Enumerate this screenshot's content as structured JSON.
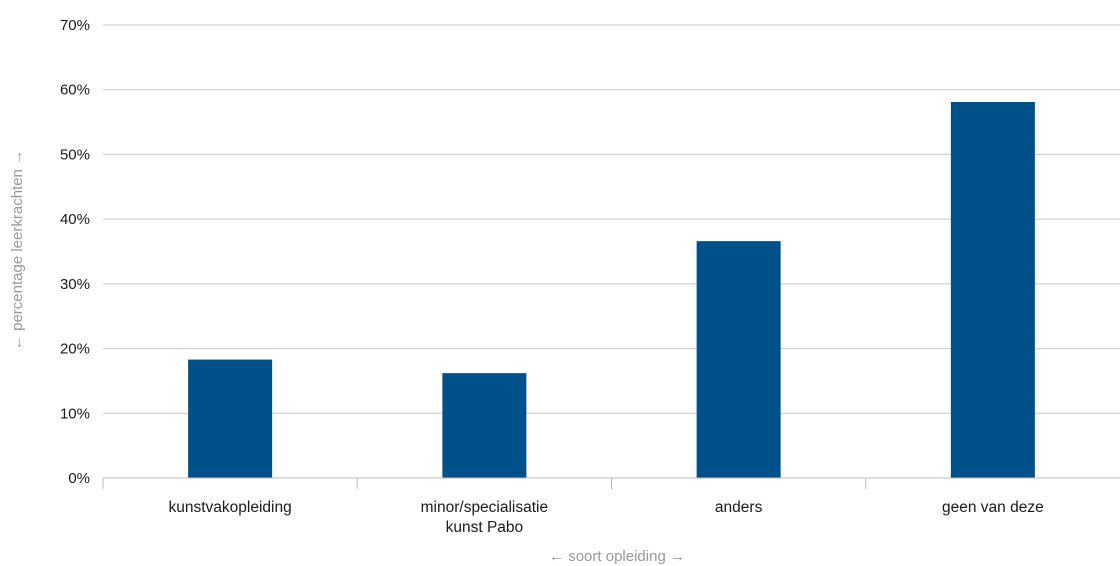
{
  "chart_data": {
    "type": "bar",
    "categories": [
      [
        "kunstvakopleiding"
      ],
      [
        "minor/specialisatie",
        "kunst Pabo"
      ],
      [
        "anders"
      ],
      [
        "geen van deze"
      ]
    ],
    "values": [
      18.3,
      16.2,
      36.6,
      58.1
    ],
    "ylim": [
      0,
      70
    ],
    "yticks": [
      0,
      10,
      20,
      30,
      40,
      50,
      60,
      70
    ],
    "ytick_labels": [
      "0%",
      "10%",
      "20%",
      "30%",
      "40%",
      "50%",
      "60%",
      "70%"
    ],
    "xlabel": "← soort opleiding →",
    "ylabel": "← percentage leerkrachten →",
    "grid": true,
    "bar_color": "#00518a",
    "grid_color": "#c8c8c8",
    "axis_title_color": "#999999"
  }
}
